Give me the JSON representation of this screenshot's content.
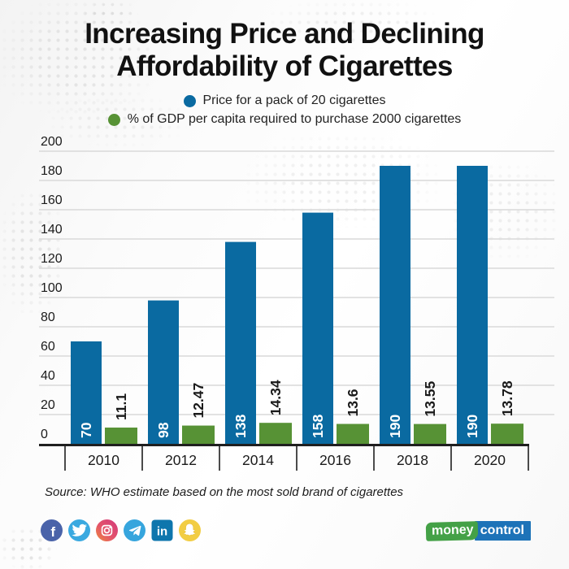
{
  "title": {
    "line1": "Increasing Price and Declining",
    "line2": "Affordability of Cigarettes"
  },
  "legend": [
    {
      "label": "Price for a pack of 20 cigarettes",
      "color": "#0a6aa1"
    },
    {
      "label": "% of GDP per capita required to purchase 2000 cigarettes",
      "color": "#579235"
    }
  ],
  "chart_data": {
    "type": "bar",
    "title": "Increasing Price and Declining Affordability of Cigarettes",
    "categories": [
      "2010",
      "2012",
      "2014",
      "2016",
      "2018",
      "2020"
    ],
    "series": [
      {
        "name": "Price for a pack of 20 cigarettes",
        "color": "#0a6aa1",
        "values": [
          70,
          98,
          138,
          158,
          190,
          190
        ],
        "label_color": "#ffffff",
        "label_position": "inside-bottom"
      },
      {
        "name": "% of GDP per capita required to purchase 2000 cigarettes",
        "color": "#579235",
        "values": [
          11.1,
          12.47,
          14.34,
          13.6,
          13.55,
          13.78
        ],
        "label_color": "#1a1a1a",
        "label_position": "above"
      }
    ],
    "xlabel": "",
    "ylabel": "",
    "ylim": [
      0,
      200
    ],
    "ytick_step": 20,
    "grid": true,
    "legend_position": "top",
    "value_label_rotation": -90
  },
  "source": "Source: WHO estimate based on the most sold brand of cigarettes",
  "social_icons": [
    "facebook",
    "twitter",
    "instagram",
    "telegram",
    "linkedin",
    "snapchat"
  ],
  "logo": {
    "part1": "money",
    "part2": "control",
    "green": "#44a147",
    "blue": "#1d73b8"
  },
  "colors": {
    "price_bar": "#0a6aa1",
    "gdp_bar": "#579235",
    "gridline": "#d9d9d9",
    "axis": "#1f1f1f"
  }
}
